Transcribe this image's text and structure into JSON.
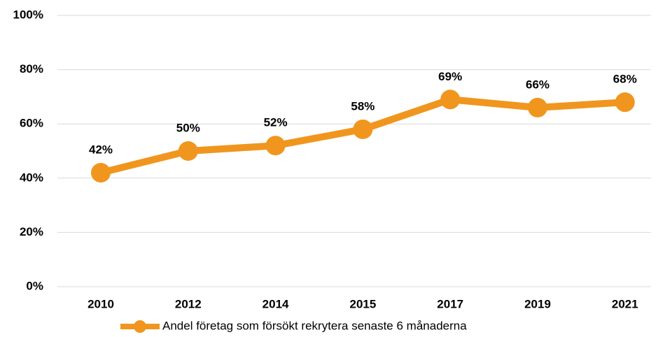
{
  "chart_data": {
    "type": "line",
    "categories": [
      "2010",
      "2012",
      "2014",
      "2015",
      "2017",
      "2019",
      "2021"
    ],
    "series": [
      {
        "name": "Andel företag som försökt rekrytera senaste 6 månaderna",
        "color": "#f0961e",
        "values": [
          42,
          50,
          52,
          58,
          69,
          66,
          68
        ],
        "value_labels": [
          "42%",
          "50%",
          "52%",
          "58%",
          "69%",
          "66%",
          "68%"
        ]
      }
    ],
    "ylim": [
      0,
      100
    ],
    "yticks": [
      {
        "value": 0,
        "label": "0%"
      },
      {
        "value": 20,
        "label": "20%"
      },
      {
        "value": 40,
        "label": "40%"
      },
      {
        "value": 60,
        "label": "60%"
      },
      {
        "value": 80,
        "label": "80%"
      },
      {
        "value": 100,
        "label": "100%"
      }
    ],
    "grid": true,
    "legend": "bottom"
  }
}
